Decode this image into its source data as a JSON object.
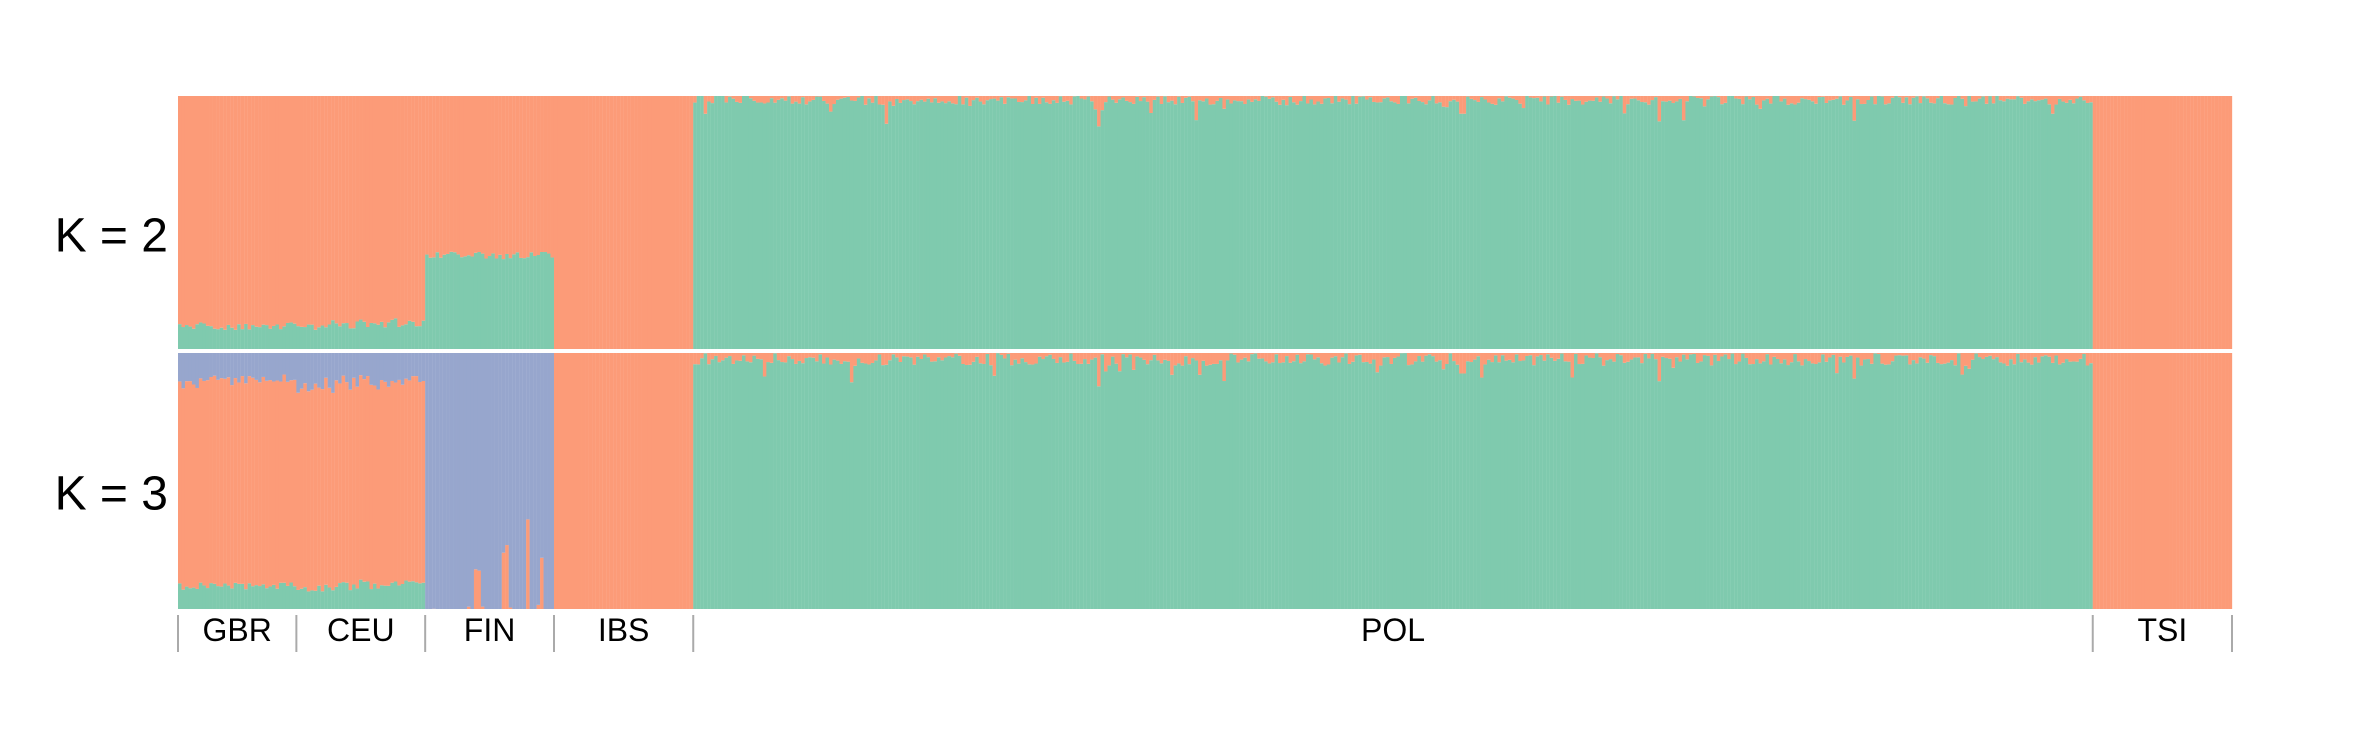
{
  "chart_data": {
    "type": "stacked-bar",
    "colors": {
      "orange": "#fc9b78",
      "green": "#7fcaae",
      "blue": "#97a6cd",
      "separator": "#ffffff",
      "tick": "#aaaaaa",
      "text": "#000000"
    },
    "populations": [
      {
        "name": "GBR",
        "n": 34
      },
      {
        "name": "CEU",
        "n": 37
      },
      {
        "name": "FIN",
        "n": 37
      },
      {
        "name": "IBS",
        "n": 40
      },
      {
        "name": "POL",
        "n": 402
      },
      {
        "name": "TSI",
        "n": 40
      }
    ],
    "panels": [
      {
        "label": "K = 2",
        "components": [
          "green",
          "orange"
        ],
        "population_profiles": {
          "GBR": {
            "green": 0.09,
            "noise": 0.015
          },
          "CEU": {
            "green": 0.11,
            "noise": 0.02,
            "start": 0.09,
            "end": 0.11
          },
          "FIN": {
            "green": 0.37,
            "noise": 0.015
          },
          "IBS": {
            "green": 0.0,
            "noise": 0.0
          },
          "POL": {
            "green": 0.985,
            "noise": 0.02,
            "dips": [
              0.29,
              0.55,
              0.69,
              0.83,
              0.91
            ],
            "dip_depth": [
              0.88,
              0.93,
              0.9,
              0.91,
              0.96
            ]
          },
          "TSI": {
            "green": 0.0,
            "noise": 0.0
          }
        }
      },
      {
        "label": "K = 3",
        "components": [
          "green",
          "orange",
          "blue"
        ],
        "population_profiles": {
          "GBR": {
            "green": 0.09,
            "orange": 0.8,
            "noise": 0.015
          },
          "CEU": {
            "green": 0.1,
            "orange": 0.79,
            "noise": 0.02,
            "start": 0.08,
            "end": 0.11
          },
          "FIN": {
            "green": 0.0,
            "orange": 0.0,
            "blue_to_orange_spikes": [
              0.4,
              0.62,
              0.8,
              0.92
            ],
            "spike_height": [
              0.15,
              0.22,
              0.35,
              0.2
            ]
          },
          "IBS": {
            "green": 0.0,
            "orange": 1.0,
            "noise": 0.0
          },
          "POL": {
            "green": 0.975,
            "orange": 0.025,
            "noise": 0.025,
            "dips": [
              0.29,
              0.55,
              0.69,
              0.83,
              0.91
            ],
            "dip_depth": [
              0.87,
              0.92,
              0.89,
              0.9,
              0.95
            ]
          },
          "TSI": {
            "green": 0.0,
            "orange": 1.0,
            "noise": 0.0
          }
        }
      }
    ]
  }
}
